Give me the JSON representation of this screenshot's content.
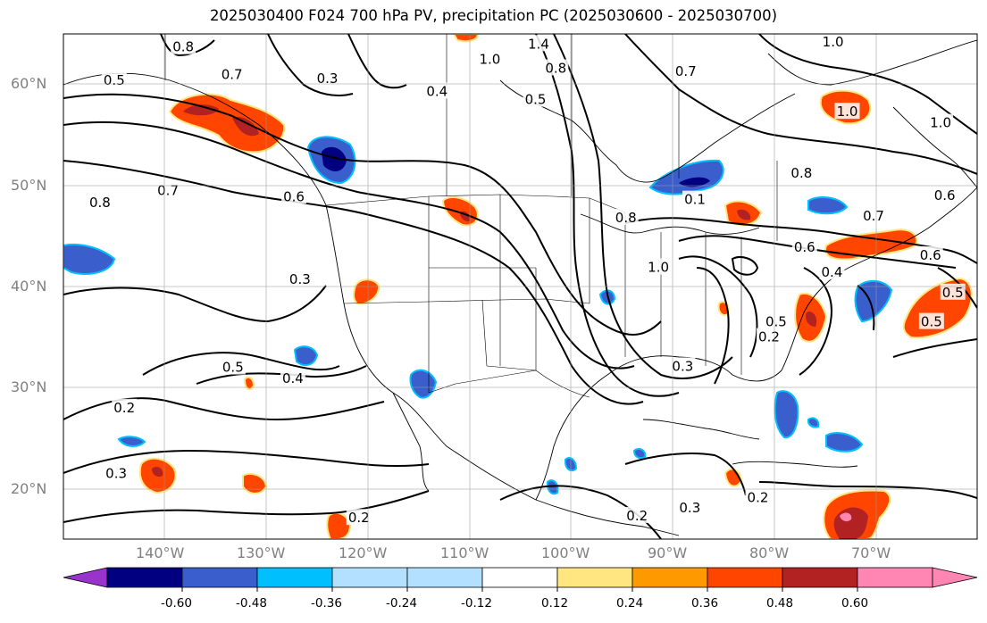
{
  "title": "2025030400 F024 700 hPa PV, precipitation PC (2025030600 - 2025030700)",
  "axes": {
    "lat_labels": [
      "60°N",
      "50°N",
      "40°N",
      "30°N",
      "20°N"
    ],
    "lon_labels": [
      "140°W",
      "130°W",
      "120°W",
      "110°W",
      "100°W",
      "90°W",
      "80°W",
      "70°W"
    ],
    "lat_range": [
      15,
      65
    ],
    "lon_range": [
      -150,
      -60
    ],
    "grid": true
  },
  "colorbar": {
    "colors": [
      "#9933cc",
      "#000080",
      "#3a5fcd",
      "#00bfff",
      "#b3e0ff",
      "#ffffff",
      "#ffe680",
      "#ff9900",
      "#ff4500",
      "#b22222",
      "#ff85b3"
    ],
    "labels": [
      "-0.60",
      "-0.48",
      "-0.36",
      "-0.24",
      "-0.12",
      "0.12",
      "0.24",
      "0.36",
      "0.48",
      "0.60"
    ],
    "extend": "both"
  },
  "contour_labels": [
    {
      "text": "0.8",
      "lon": -138.2,
      "lat": 63.7
    },
    {
      "text": "0.7",
      "lon": -133.4,
      "lat": 61.0
    },
    {
      "text": "0.5",
      "lon": -145.0,
      "lat": 60.4
    },
    {
      "text": "0.3",
      "lon": -124.0,
      "lat": 60.6
    },
    {
      "text": "0.4",
      "lon": -113.2,
      "lat": 59.3
    },
    {
      "text": "1.4",
      "lon": -103.2,
      "lat": 64.0
    },
    {
      "text": "1.0",
      "lon": -108.0,
      "lat": 62.5
    },
    {
      "text": "0.8",
      "lon": -101.5,
      "lat": 61.6
    },
    {
      "text": "0.5",
      "lon": -103.5,
      "lat": 58.5
    },
    {
      "text": "0.7",
      "lon": -88.7,
      "lat": 61.3
    },
    {
      "text": "1.0",
      "lon": -74.2,
      "lat": 64.2
    },
    {
      "text": "1.0",
      "lon": -72.8,
      "lat": 57.3
    },
    {
      "text": "1.0",
      "lon": -63.6,
      "lat": 56.2
    },
    {
      "text": "0.8",
      "lon": -77.3,
      "lat": 51.2
    },
    {
      "text": "0.6",
      "lon": -63.2,
      "lat": 49.0
    },
    {
      "text": "0.8",
      "lon": -146.4,
      "lat": 48.3
    },
    {
      "text": "0.7",
      "lon": -139.7,
      "lat": 49.5
    },
    {
      "text": "0.6",
      "lon": -127.3,
      "lat": 48.9
    },
    {
      "text": "0.1",
      "lon": -87.8,
      "lat": 48.6
    },
    {
      "text": "0.8",
      "lon": -94.6,
      "lat": 46.8
    },
    {
      "text": "0.6",
      "lon": -77.0,
      "lat": 43.9
    },
    {
      "text": "0.7",
      "lon": -70.2,
      "lat": 47.0
    },
    {
      "text": "0.4",
      "lon": -74.3,
      "lat": 41.4
    },
    {
      "text": "0.6",
      "lon": -64.6,
      "lat": 43.1
    },
    {
      "text": "1.0",
      "lon": -91.4,
      "lat": 41.9
    },
    {
      "text": "0.3",
      "lon": -126.7,
      "lat": 40.7
    },
    {
      "text": "0.5",
      "lon": -62.4,
      "lat": 39.4
    },
    {
      "text": "0.5",
      "lon": -79.8,
      "lat": 36.5
    },
    {
      "text": "0.5",
      "lon": -64.5,
      "lat": 36.5
    },
    {
      "text": "0.2",
      "lon": -80.5,
      "lat": 35.0
    },
    {
      "text": "0.3",
      "lon": -89.0,
      "lat": 32.1
    },
    {
      "text": "0.5",
      "lon": -133.3,
      "lat": 32.0
    },
    {
      "text": "0.4",
      "lon": -127.4,
      "lat": 30.9
    },
    {
      "text": "0.2",
      "lon": -144.0,
      "lat": 28.0
    },
    {
      "text": "0.3",
      "lon": -144.8,
      "lat": 21.5
    },
    {
      "text": "0.2",
      "lon": -81.6,
      "lat": 19.1
    },
    {
      "text": "0.2",
      "lon": -120.9,
      "lat": 17.1
    },
    {
      "text": "0.3",
      "lon": -88.3,
      "lat": 18.1
    },
    {
      "text": "0.2",
      "lon": -93.5,
      "lat": 17.3
    }
  ]
}
